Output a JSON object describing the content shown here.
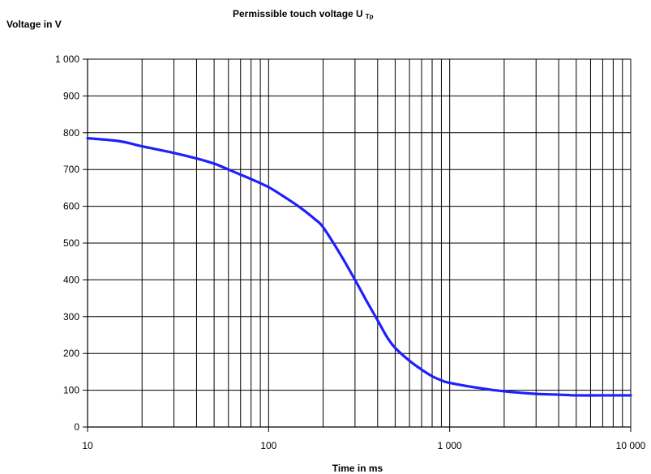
{
  "chart_data": {
    "type": "line",
    "title": "Permissible touch voltage U",
    "title_subscript": "Tp",
    "xlabel": "Time in ms",
    "ylabel": "Voltage in V",
    "x_scale": "log",
    "xlim": [
      10,
      10000
    ],
    "ylim": [
      0,
      1000
    ],
    "grid": true,
    "x_ticks": [
      {
        "value": 10,
        "label": "10"
      },
      {
        "value": 100,
        "label": "100"
      },
      {
        "value": 1000,
        "label": "1 000"
      },
      {
        "value": 10000,
        "label": "10 000"
      }
    ],
    "y_ticks": [
      {
        "value": 0,
        "label": "0"
      },
      {
        "value": 100,
        "label": "100"
      },
      {
        "value": 200,
        "label": "200"
      },
      {
        "value": 300,
        "label": "300"
      },
      {
        "value": 400,
        "label": "400"
      },
      {
        "value": 500,
        "label": "500"
      },
      {
        "value": 600,
        "label": "600"
      },
      {
        "value": 700,
        "label": "700"
      },
      {
        "value": 800,
        "label": "800"
      },
      {
        "value": 900,
        "label": "900"
      },
      {
        "value": 1000,
        "label": "1 000"
      }
    ],
    "series": [
      {
        "color": "#1f1fff",
        "x": [
          10,
          15,
          20,
          30,
          40,
          50,
          60,
          70,
          80,
          100,
          120,
          150,
          180,
          200,
          250,
          300,
          350,
          400,
          450,
          500,
          600,
          700,
          800,
          900,
          1000,
          1500,
          2000,
          3000,
          4000,
          5000,
          7000,
          10000
        ],
        "y": [
          785,
          777,
          763,
          745,
          730,
          716,
          700,
          686,
          674,
          652,
          628,
          596,
          565,
          543,
          468,
          400,
          340,
          290,
          245,
          215,
          180,
          156,
          138,
          127,
          120,
          105,
          97,
          90,
          88,
          86,
          86,
          86
        ]
      }
    ]
  }
}
